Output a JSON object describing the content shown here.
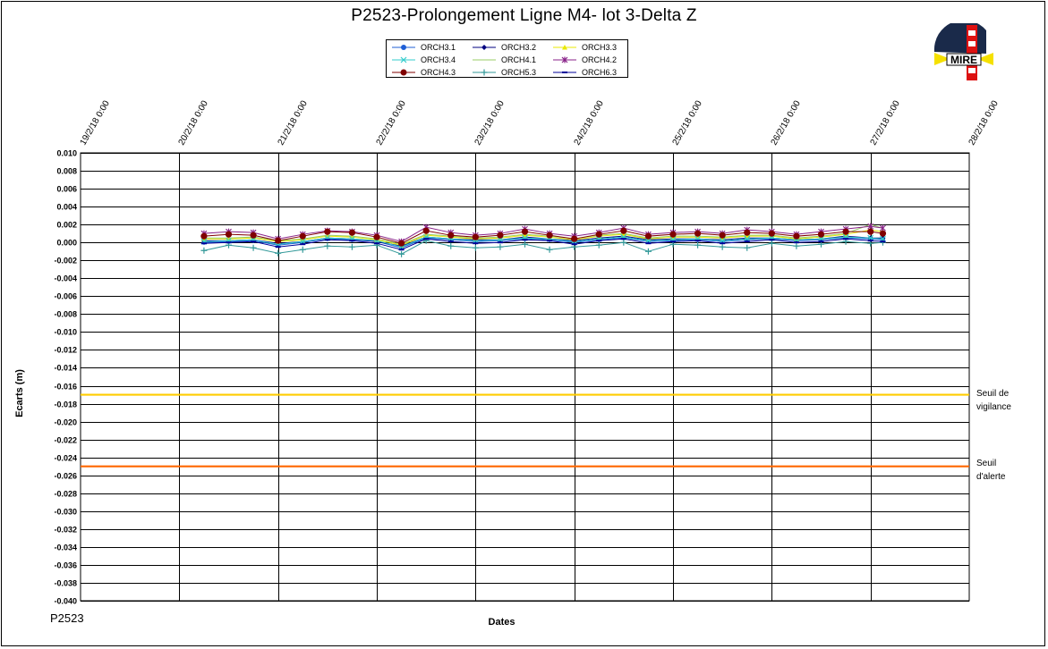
{
  "page": {
    "title": "P2523-Prolongement  Ligne  M4- lot 3-Delta Z",
    "code": "P2523",
    "logo_text": "MIRE"
  },
  "colors": {
    "vigilance": "#ffcc00",
    "alerte": "#ff6600",
    "logo_red": "#dd1111",
    "logo_dark": "#1a2a4a",
    "logo_yellow": "#f5e000"
  },
  "chart_data": {
    "type": "line",
    "title": "P2523-Prolongement  Ligne  M4- lot 3-Delta Z",
    "xlabel": "Dates",
    "ylabel": "Ecarts (m)",
    "xlim": [
      "19/2/18 0:00",
      "28/2/18 0:00"
    ],
    "x_ticks": [
      "19/2/18 0:00",
      "20/2/18 0:00",
      "21/2/18 0:00",
      "22/2/18 0:00",
      "23/2/18 0:00",
      "24/2/18 0:00",
      "25/2/18 0:00",
      "26/2/18 0:00",
      "27/2/18 0:00",
      "28/2/18 0:00"
    ],
    "ylim": [
      -0.04,
      0.01
    ],
    "y_step": 0.002,
    "grid": true,
    "legend_position": "top-center",
    "thresholds": [
      {
        "label_line1": "Seuil de",
        "label_line2": "vigilance",
        "value": -0.017,
        "color": "#ffcc00"
      },
      {
        "label_line1": "Seuil",
        "label_line2": "d'alerte",
        "value": -0.025,
        "color": "#ff6600"
      }
    ],
    "x": [
      "20/2/18 06:00",
      "20/2/18 12:00",
      "20/2/18 18:00",
      "21/2/18 00:00",
      "21/2/18 06:00",
      "21/2/18 12:00",
      "21/2/18 18:00",
      "22/2/18 00:00",
      "22/2/18 06:00",
      "22/2/18 12:00",
      "22/2/18 18:00",
      "23/2/18 00:00",
      "23/2/18 06:00",
      "23/2/18 12:00",
      "23/2/18 18:00",
      "24/2/18 00:00",
      "24/2/18 06:00",
      "24/2/18 12:00",
      "24/2/18 18:00",
      "25/2/18 00:00",
      "25/2/18 06:00",
      "25/2/18 12:00",
      "25/2/18 18:00",
      "26/2/18 00:00",
      "26/2/18 06:00",
      "26/2/18 12:00",
      "26/2/18 18:00",
      "27/2/18 00:00",
      "27/2/18 03:00"
    ],
    "series": [
      {
        "name": "ORCH3.1",
        "color": "#1f5fd6",
        "marker": "circle",
        "values": [
          0.0,
          0.0001,
          0.0002,
          -0.0003,
          0.0,
          0.0004,
          0.0003,
          0.0001,
          -0.0006,
          0.0005,
          0.0003,
          0.0001,
          0.0002,
          0.0004,
          0.0003,
          0.0,
          0.0003,
          0.0005,
          0.0001,
          0.0002,
          0.0003,
          0.0001,
          0.0003,
          0.0004,
          0.0002,
          0.0003,
          0.0005,
          0.0004,
          0.0003
        ]
      },
      {
        "name": "ORCH3.2",
        "color": "#000080",
        "marker": "diamond",
        "values": [
          0.0002,
          0.0002,
          0.0003,
          -0.0001,
          0.0001,
          0.0005,
          0.0004,
          0.0001,
          -0.0004,
          0.0006,
          0.0004,
          0.0003,
          0.0003,
          0.0006,
          0.0004,
          0.0002,
          0.0005,
          0.0007,
          0.0003,
          0.0004,
          0.0004,
          0.0003,
          0.0005,
          0.0005,
          0.0003,
          0.0004,
          0.0007,
          0.0005,
          0.0005
        ]
      },
      {
        "name": "ORCH3.3",
        "color": "#e8e800",
        "marker": "triangle",
        "values": [
          0.0004,
          0.0004,
          0.0005,
          0.0001,
          0.0003,
          0.0007,
          0.0006,
          0.0003,
          -0.0003,
          0.0008,
          0.0006,
          0.0004,
          0.0005,
          0.0008,
          0.0006,
          0.0003,
          0.0007,
          0.0009,
          0.0004,
          0.0006,
          0.0006,
          0.0005,
          0.0007,
          0.0007,
          0.0004,
          0.0006,
          0.0009,
          0.0014,
          0.0012
        ]
      },
      {
        "name": "ORCH3.4",
        "color": "#33cccc",
        "marker": "x",
        "values": [
          0.0001,
          0.0002,
          0.0003,
          -0.0002,
          0.0001,
          0.0005,
          0.0004,
          0.0002,
          -0.0005,
          0.0006,
          0.0004,
          0.0002,
          0.0003,
          0.0005,
          0.0004,
          0.0001,
          0.0004,
          0.0006,
          0.0002,
          0.0003,
          0.0004,
          0.0002,
          0.0004,
          0.0005,
          0.0003,
          0.0004,
          0.0006,
          0.0005,
          0.0004
        ]
      },
      {
        "name": "ORCH4.1",
        "color": "#99cc66",
        "marker": "none",
        "values": [
          0.0005,
          0.0005,
          0.0006,
          0.0002,
          0.0004,
          0.0008,
          0.0007,
          0.0004,
          -0.0002,
          0.0009,
          0.0007,
          0.0005,
          0.0006,
          0.0009,
          0.0007,
          0.0004,
          0.0008,
          0.001,
          0.0005,
          0.0007,
          0.0007,
          0.0006,
          0.0008,
          0.0008,
          0.0005,
          0.0007,
          0.001,
          0.002,
          0.0016
        ]
      },
      {
        "name": "ORCH4.2",
        "color": "#882288",
        "marker": "star",
        "values": [
          0.001,
          0.0012,
          0.0011,
          0.0004,
          0.0009,
          0.0013,
          0.0012,
          0.0008,
          0.0001,
          0.0017,
          0.0011,
          0.0008,
          0.001,
          0.0015,
          0.001,
          0.0007,
          0.0011,
          0.0016,
          0.0009,
          0.0011,
          0.0012,
          0.001,
          0.0014,
          0.0012,
          0.0009,
          0.0012,
          0.0015,
          0.0018,
          0.0016
        ]
      },
      {
        "name": "ORCH4.3",
        "color": "#800000",
        "marker": "circle-big",
        "values": [
          0.0007,
          0.0009,
          0.0008,
          0.0002,
          0.0007,
          0.0012,
          0.0011,
          0.0006,
          -0.0001,
          0.0013,
          0.0008,
          0.0006,
          0.0008,
          0.0012,
          0.0008,
          0.0004,
          0.0009,
          0.0013,
          0.0007,
          0.0009,
          0.001,
          0.0008,
          0.0011,
          0.001,
          0.0007,
          0.0009,
          0.0012,
          0.0012,
          0.001
        ]
      },
      {
        "name": "ORCH5.3",
        "color": "#339999",
        "marker": "plus",
        "values": [
          -0.0009,
          -0.0003,
          -0.0006,
          -0.0012,
          -0.0008,
          -0.0004,
          -0.0005,
          -0.0003,
          -0.0013,
          0.0002,
          -0.0004,
          -0.0006,
          -0.0005,
          -0.0002,
          -0.0008,
          -0.0005,
          -0.0003,
          0.0,
          -0.001,
          -0.0002,
          -0.0003,
          -0.0005,
          -0.0006,
          -0.0001,
          -0.0004,
          -0.0002,
          0.0001,
          -0.0001,
          0.0
        ]
      },
      {
        "name": "ORCH6.3",
        "color": "#000099",
        "marker": "dash",
        "values": [
          -0.0001,
          0.0,
          0.0001,
          -0.0005,
          -0.0002,
          0.0003,
          0.0002,
          -0.0001,
          -0.0008,
          0.0004,
          0.0001,
          -0.0001,
          0.0,
          0.0003,
          0.0002,
          -0.0002,
          0.0002,
          0.0004,
          -0.0001,
          0.0001,
          0.0002,
          -0.0001,
          0.0001,
          0.0003,
          0.0,
          0.0001,
          0.0004,
          0.0002,
          0.0001
        ]
      }
    ]
  }
}
